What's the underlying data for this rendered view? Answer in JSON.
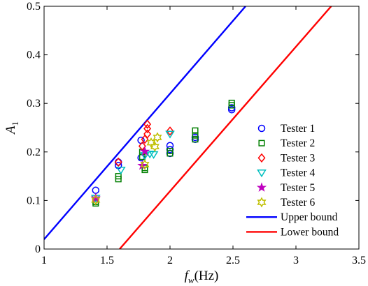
{
  "chart_data": {
    "type": "scatter",
    "xlabel": {
      "main": "f",
      "sub": "w",
      "unit": "(Hz)"
    },
    "ylabel": {
      "main": "A",
      "sub": "1"
    },
    "xlim": [
      1,
      3.5
    ],
    "ylim": [
      0,
      0.5
    ],
    "xticks": [
      "1",
      "1.5",
      "2",
      "2.5",
      "3",
      "3.5"
    ],
    "yticks": [
      "0",
      "0.1",
      "0.2",
      "0.3",
      "0.4",
      "0.5"
    ],
    "grid": false,
    "legend_position": "right",
    "series": [
      {
        "name": "Tester 1",
        "marker": "circle",
        "color": "#0000ff",
        "points": [
          [
            1.41,
            0.121
          ],
          [
            1.59,
            0.179
          ],
          [
            1.59,
            0.172
          ],
          [
            1.77,
            0.224
          ],
          [
            1.77,
            0.188
          ],
          [
            2.0,
            0.213
          ],
          [
            2.0,
            0.205
          ],
          [
            2.0,
            0.197
          ],
          [
            2.2,
            0.23
          ],
          [
            2.2,
            0.226
          ],
          [
            2.49,
            0.291
          ],
          [
            2.49,
            0.287
          ]
        ]
      },
      {
        "name": "Tester 2",
        "marker": "square",
        "color": "#007f00",
        "points": [
          [
            1.41,
            0.097
          ],
          [
            1.41,
            0.094
          ],
          [
            1.59,
            0.15
          ],
          [
            1.59,
            0.144
          ],
          [
            1.78,
            0.2
          ],
          [
            1.78,
            0.19
          ],
          [
            1.8,
            0.167
          ],
          [
            1.8,
            0.163
          ],
          [
            2.0,
            0.202
          ],
          [
            2.0,
            0.197
          ],
          [
            2.2,
            0.244
          ],
          [
            2.2,
            0.234
          ],
          [
            2.2,
            0.226
          ],
          [
            2.49,
            0.301
          ],
          [
            2.49,
            0.296
          ]
        ]
      },
      {
        "name": "Tester 3",
        "marker": "diamond",
        "color": "#ff0000",
        "points": [
          [
            1.41,
            0.101
          ],
          [
            1.59,
            0.179
          ],
          [
            1.78,
            0.212
          ],
          [
            1.8,
            0.226
          ],
          [
            1.82,
            0.257
          ],
          [
            1.82,
            0.248
          ],
          [
            1.82,
            0.237
          ],
          [
            2.0,
            0.243
          ]
        ]
      },
      {
        "name": "Tester 4",
        "marker": "triangle-down",
        "color": "#00bfbf",
        "points": [
          [
            1.41,
            0.105
          ],
          [
            1.61,
            0.163
          ],
          [
            1.8,
            0.193
          ],
          [
            1.84,
            0.196
          ],
          [
            1.87,
            0.195
          ],
          [
            2.0,
            0.237
          ]
        ]
      },
      {
        "name": "Tester 5",
        "marker": "star",
        "color": "#bf00bf",
        "points": [
          [
            1.41,
            0.105
          ],
          [
            1.78,
            0.172
          ],
          [
            1.8,
            0.201
          ]
        ]
      },
      {
        "name": "Tester 6",
        "marker": "hexagram",
        "color": "#bfbf00",
        "points": [
          [
            1.41,
            0.101
          ],
          [
            1.8,
            0.174
          ],
          [
            1.85,
            0.219
          ],
          [
            1.88,
            0.211
          ],
          [
            1.9,
            0.23
          ]
        ]
      }
    ],
    "lines": [
      {
        "name": "Upper bound",
        "color": "#0000ff",
        "points": [
          [
            1,
            0.02
          ],
          [
            2.6,
            0.5
          ]
        ]
      },
      {
        "name": "Lower bound",
        "color": "#ff0000",
        "points": [
          [
            1.6,
            0
          ],
          [
            3.28,
            0.5
          ]
        ]
      }
    ]
  }
}
